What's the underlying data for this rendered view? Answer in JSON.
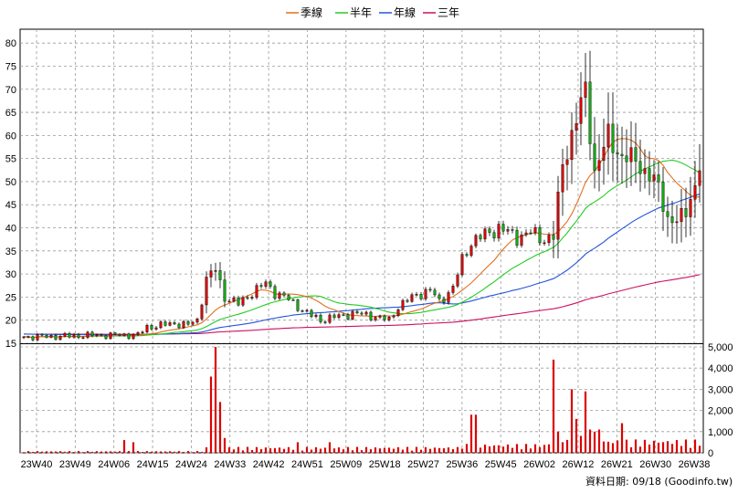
{
  "chart_data": {
    "type": "candlestick",
    "legend": [
      {
        "label": "季線",
        "color": "#e07020"
      },
      {
        "label": "半年",
        "color": "#22cc22"
      },
      {
        "label": "年線",
        "color": "#2255dd"
      },
      {
        "label": "三年",
        "color": "#cc1060"
      }
    ],
    "price_axis": {
      "ticks": [
        15,
        20,
        25,
        30,
        35,
        40,
        45,
        50,
        55,
        60,
        65,
        70,
        75,
        80
      ],
      "range": [
        15,
        83
      ],
      "grid": true
    },
    "volume_axis": {
      "ticks": [
        "0",
        "1,000",
        "2,000",
        "3,000",
        "4,000",
        "5,000"
      ],
      "range": [
        0,
        5000
      ],
      "grid": true
    },
    "x_ticks": [
      "23W40",
      "23W49",
      "24W06",
      "24W15",
      "24W24",
      "24W33",
      "24W42",
      "24W51",
      "25W09",
      "25W18",
      "25W27",
      "25W36",
      "25W45",
      "26W02",
      "26W12",
      "26W21",
      "26W30",
      "26W38"
    ],
    "candle_colors": {
      "up": "#dd0000",
      "down": "#11aa11"
    },
    "volume_color": "#dd0000",
    "footer": "資料日期: 09/18  (Goodinfo.tw)",
    "keypoints": [
      [
        0,
        16.4
      ],
      [
        8,
        16.5
      ],
      [
        14,
        16.7
      ],
      [
        25,
        16.8
      ],
      [
        27,
        18.5
      ],
      [
        33,
        19.3
      ],
      [
        36,
        19.0
      ],
      [
        38,
        20.0
      ],
      [
        40,
        29.0
      ],
      [
        42,
        31.0
      ],
      [
        44,
        25.0
      ],
      [
        47,
        23.5
      ],
      [
        50,
        26.0
      ],
      [
        53,
        28.0
      ],
      [
        55,
        26.0
      ],
      [
        58,
        24.5
      ],
      [
        62,
        21.5
      ],
      [
        65,
        20.0
      ],
      [
        67,
        20.5
      ],
      [
        70,
        21.0
      ],
      [
        72,
        21.5
      ],
      [
        76,
        21.0
      ],
      [
        80,
        20.0
      ],
      [
        82,
        23.0
      ],
      [
        86,
        25.5
      ],
      [
        89,
        26.5
      ],
      [
        91,
        24.0
      ],
      [
        94,
        27.0
      ],
      [
        96,
        33.0
      ],
      [
        98,
        37.0
      ],
      [
        101,
        38.5
      ],
      [
        104,
        40.0
      ],
      [
        108,
        38.0
      ],
      [
        111,
        39.0
      ],
      [
        114,
        37.5
      ],
      [
        116,
        38.0
      ],
      [
        118,
        54.0
      ],
      [
        120,
        60.0
      ],
      [
        123,
        70.0
      ],
      [
        125,
        52.0
      ],
      [
        128,
        60.0
      ],
      [
        131,
        55.0
      ],
      [
        134,
        55.0
      ],
      [
        136,
        52.0
      ],
      [
        139,
        49.0
      ],
      [
        141,
        42.0
      ],
      [
        143,
        41.0
      ],
      [
        145,
        44.0
      ],
      [
        147,
        49.0
      ],
      [
        148,
        53.0
      ]
    ],
    "volume_spikes": [
      [
        22,
        600
      ],
      [
        24,
        500
      ],
      [
        41,
        3600
      ],
      [
        42,
        5000
      ],
      [
        43,
        2400
      ],
      [
        44,
        700
      ],
      [
        60,
        500
      ],
      [
        67,
        500
      ],
      [
        98,
        1800
      ],
      [
        99,
        1800
      ],
      [
        115,
        400
      ],
      [
        116,
        4400
      ],
      [
        117,
        1000
      ],
      [
        118,
        500
      ],
      [
        120,
        3000
      ],
      [
        121,
        1600
      ],
      [
        122,
        800
      ],
      [
        123,
        2900
      ],
      [
        124,
        1100
      ],
      [
        125,
        1000
      ],
      [
        126,
        1100
      ],
      [
        131,
        1400
      ]
    ],
    "n_weeks": 149
  }
}
